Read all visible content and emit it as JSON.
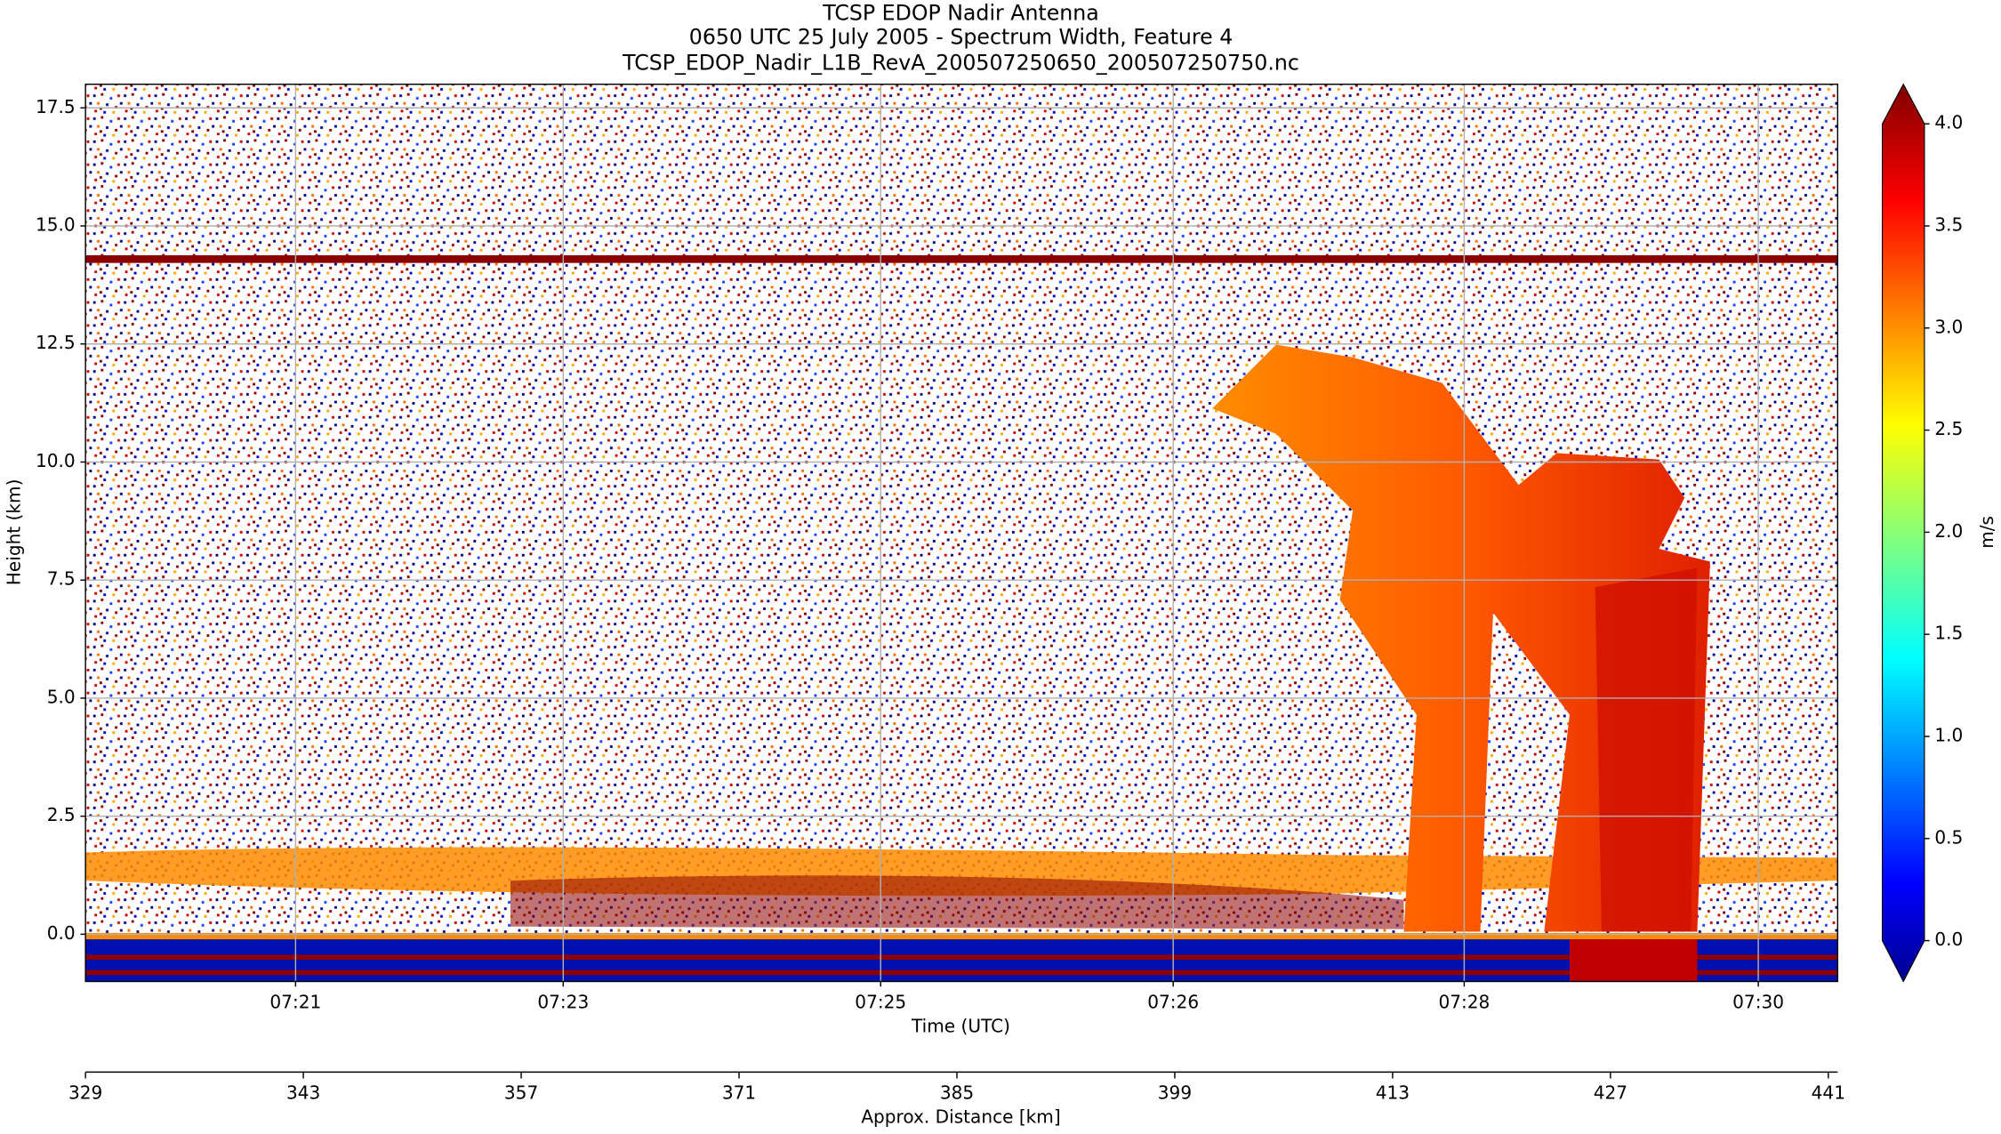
{
  "chart_data": {
    "type": "curtain",
    "title_lines": [
      "TCSP EDOP Nadir Antenna",
      "0650 UTC 25 July 2005 - Spectrum Width, Feature 4",
      "TCSP_EDOP_Nadir_L1B_RevA_200507250650_200507250750.nc"
    ],
    "xlabel": "Time (UTC)",
    "ylabel": "Height (km)",
    "x2label": "Approx. Distance [km]",
    "xlim": [
      329,
      441.6
    ],
    "ylim": [
      -1,
      18
    ],
    "yticks": [
      {
        "value": 0,
        "label": "0.0"
      },
      {
        "value": 2.5,
        "label": "2.5"
      },
      {
        "value": 5,
        "label": "5.0"
      },
      {
        "value": 7.5,
        "label": "7.5"
      },
      {
        "value": 10,
        "label": "10.0"
      },
      {
        "value": 12.5,
        "label": "12.5"
      },
      {
        "value": 15,
        "label": "15.0"
      },
      {
        "value": 17.5,
        "label": "17.5"
      }
    ],
    "xticks": [
      {
        "value": 342.5,
        "label": "07:21"
      },
      {
        "value": 359.7,
        "label": "07:23"
      },
      {
        "value": 380.1,
        "label": "07:25"
      },
      {
        "value": 398.9,
        "label": "07:26"
      },
      {
        "value": 417.6,
        "label": "07:28"
      },
      {
        "value": 436.5,
        "label": "07:30"
      }
    ],
    "x2ticks": [
      329,
      343,
      357,
      371,
      385,
      399,
      413,
      427,
      441
    ],
    "grid": true,
    "colorbar": {
      "label": "m/s",
      "clim": [
        0,
        4
      ],
      "extend": "both",
      "colormap": "jet",
      "ticks": [
        {
          "value": 0,
          "label": "0.0"
        },
        {
          "value": 0.5,
          "label": "0.5"
        },
        {
          "value": 1,
          "label": "1.0"
        },
        {
          "value": 1.5,
          "label": "1.5"
        },
        {
          "value": 2,
          "label": "2.0"
        },
        {
          "value": 2.5,
          "label": "2.5"
        },
        {
          "value": 3,
          "label": "3.0"
        },
        {
          "value": 3.5,
          "label": "3.5"
        },
        {
          "value": 4,
          "label": "4.0"
        }
      ]
    }
  }
}
